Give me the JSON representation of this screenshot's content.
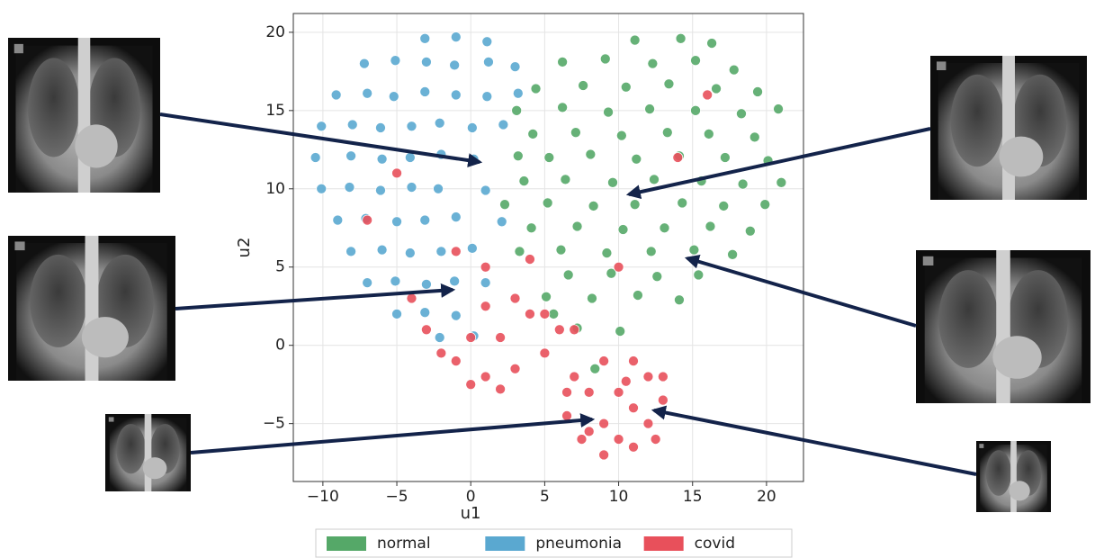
{
  "chart_data": {
    "type": "scatter",
    "xlabel": "u1",
    "ylabel": "u2",
    "xlim": [
      -12,
      22.5
    ],
    "ylim": [
      -8.7,
      21.2
    ],
    "xticks": [
      {
        "value": -10,
        "label": "−10"
      },
      {
        "value": -5,
        "label": "−5"
      },
      0,
      5,
      10,
      15,
      20
    ],
    "yticks": [
      {
        "value": -5,
        "label": "−5"
      },
      0,
      5,
      10,
      15,
      20
    ],
    "grid": true,
    "legend": "bottom",
    "series": [
      {
        "name": "normal",
        "color": "#55a868",
        "x": [
          6.2,
          9.1,
          12.3,
          15.2,
          17.8,
          11.1,
          14.2,
          16.3,
          4.4,
          7.6,
          10.5,
          13.4,
          16.6,
          19.4,
          3.1,
          6.2,
          9.3,
          12.1,
          15.2,
          18.3,
          20.8,
          4.2,
          7.1,
          10.2,
          13.3,
          16.1,
          19.2,
          3.2,
          5.3,
          8.1,
          11.2,
          14.1,
          17.2,
          20.1,
          3.6,
          6.4,
          9.6,
          12.4,
          15.6,
          18.4,
          21.0,
          2.3,
          5.2,
          8.3,
          11.1,
          14.3,
          17.1,
          19.9,
          4.1,
          7.2,
          10.3,
          13.1,
          16.2,
          18.9,
          3.3,
          6.1,
          9.2,
          12.2,
          15.1,
          17.7,
          6.6,
          9.5,
          12.6,
          15.4,
          5.1,
          8.2,
          11.3,
          14.1,
          7.2,
          10.1,
          8.4,
          5.6
        ],
        "values": [
          18.1,
          18.3,
          18.0,
          18.2,
          17.6,
          19.5,
          19.6,
          19.3,
          16.4,
          16.6,
          16.5,
          16.7,
          16.4,
          16.2,
          15.0,
          15.2,
          14.9,
          15.1,
          15.0,
          14.8,
          15.1,
          13.5,
          13.6,
          13.4,
          13.6,
          13.5,
          13.3,
          12.1,
          12.0,
          12.2,
          11.9,
          12.1,
          12.0,
          11.8,
          10.5,
          10.6,
          10.4,
          10.6,
          10.5,
          10.3,
          10.4,
          9.0,
          9.1,
          8.9,
          9.0,
          9.1,
          8.9,
          9.0,
          7.5,
          7.6,
          7.4,
          7.5,
          7.6,
          7.3,
          6.0,
          6.1,
          5.9,
          6.0,
          6.1,
          5.8,
          4.5,
          4.6,
          4.4,
          4.5,
          3.1,
          3.0,
          3.2,
          2.9,
          1.1,
          0.9,
          -1.5,
          2.0
        ]
      },
      {
        "name": "pneumonia",
        "color": "#5aa8d0",
        "x": [
          -3.1,
          -1.0,
          1.1,
          -7.2,
          -5.1,
          -3.0,
          -1.1,
          1.2,
          3.0,
          -9.1,
          -7.0,
          -5.2,
          -3.1,
          -1.0,
          1.1,
          3.2,
          -10.1,
          -8.0,
          -6.1,
          -4.0,
          -2.1,
          0.1,
          2.2,
          -10.5,
          -8.1,
          -6.0,
          -4.1,
          -2.0,
          0.2,
          -10.1,
          -8.2,
          -6.1,
          -4.0,
          -2.2,
          1.0,
          -9.0,
          -7.1,
          -5.0,
          -3.1,
          -1.0,
          2.1,
          -8.1,
          -6.0,
          -4.1,
          -2.0,
          0.1,
          -7.0,
          -5.1,
          -3.0,
          -1.1,
          1.0,
          -5.0,
          -3.1,
          -1.0,
          -2.1,
          0.2
        ],
        "values": [
          19.6,
          19.7,
          19.4,
          18.0,
          18.2,
          18.1,
          17.9,
          18.1,
          17.8,
          16.0,
          16.1,
          15.9,
          16.2,
          16.0,
          15.9,
          16.1,
          14.0,
          14.1,
          13.9,
          14.0,
          14.2,
          13.9,
          14.1,
          12.0,
          12.1,
          11.9,
          12.0,
          12.2,
          11.9,
          10.0,
          10.1,
          9.9,
          10.1,
          10.0,
          9.9,
          8.0,
          8.1,
          7.9,
          8.0,
          8.2,
          7.9,
          6.0,
          6.1,
          5.9,
          6.0,
          6.2,
          4.0,
          4.1,
          3.9,
          4.1,
          4.0,
          2.0,
          2.1,
          1.9,
          0.5,
          0.6
        ]
      },
      {
        "name": "covid",
        "color": "#e8505b",
        "x": [
          7.0,
          9.0,
          11.0,
          12.0,
          13.0,
          12.0,
          11.0,
          9.0,
          7.5,
          6.5,
          8.0,
          10.0,
          9.0,
          11.0,
          10.0,
          8.0,
          12.5,
          6.5,
          13.0,
          10.5,
          -3.0,
          -1.0,
          1.0,
          3.0,
          5.0,
          6.0,
          4.0,
          2.0,
          0.0,
          -2.0,
          3.0,
          1.0,
          5.0,
          7.0,
          0.0,
          2.0,
          -4.0,
          14.0,
          -7.0,
          -5.0,
          16.0,
          10.0,
          1.0,
          4.0,
          -1.0
        ],
        "values": [
          -2.0,
          -1.0,
          -1.0,
          -2.0,
          -3.5,
          -5.0,
          -6.5,
          -7.0,
          -6.0,
          -4.5,
          -3.0,
          -3.0,
          -5.0,
          -4.0,
          -6.0,
          -5.5,
          -6.0,
          -3.0,
          -2.0,
          -2.3,
          1.0,
          -1.0,
          -2.0,
          -1.5,
          -0.5,
          1.0,
          2.0,
          0.5,
          0.5,
          -0.5,
          3.0,
          2.5,
          2.0,
          1.0,
          -2.5,
          -2.8,
          3.0,
          12.0,
          8.0,
          11.0,
          16.0,
          5.0,
          5.0,
          5.5,
          6.0
        ]
      }
    ]
  }
}
